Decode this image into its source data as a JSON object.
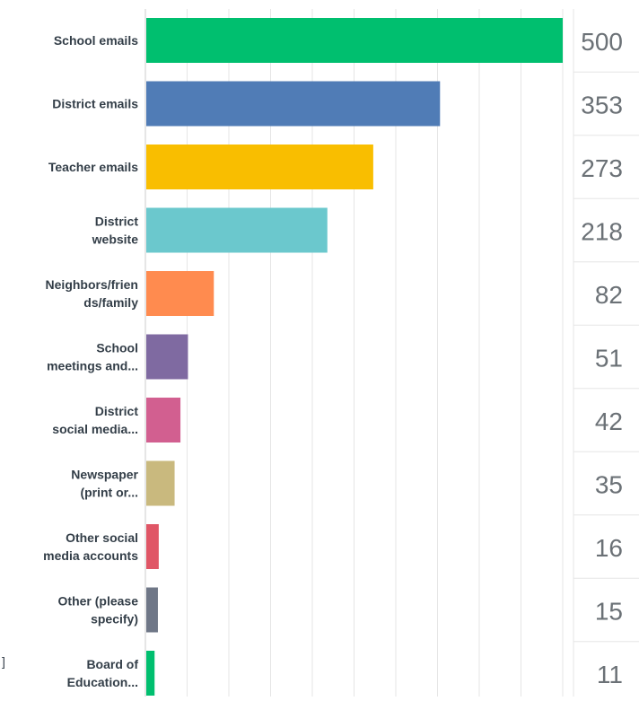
{
  "chart_data": {
    "type": "bar",
    "orientation": "horizontal",
    "categories": [
      "School emails",
      "District emails",
      "Teacher emails",
      "District website",
      "Neighbors/friends/family",
      "School meetings and...",
      "District social media...",
      "Newspaper (print or...",
      "Other social media accounts",
      "Other (please specify)",
      "Board of Education..."
    ],
    "category_label_lines": [
      [
        "School emails"
      ],
      [
        "District emails"
      ],
      [
        "Teacher emails"
      ],
      [
        "District",
        "website"
      ],
      [
        "Neighbors/frien",
        "ds/family"
      ],
      [
        "School",
        "meetings and..."
      ],
      [
        "District",
        "social media..."
      ],
      [
        "Newspaper",
        "(print or..."
      ],
      [
        "Other social",
        "media accounts"
      ],
      [
        "Other (please",
        "specify)"
      ],
      [
        "Board of",
        "Education..."
      ]
    ],
    "values": [
      500,
      353,
      273,
      218,
      82,
      51,
      42,
      35,
      16,
      15,
      11
    ],
    "value_labels": [
      "500",
      "353",
      "273",
      "218",
      "82",
      "51",
      "42",
      "35",
      "16",
      "15",
      "11"
    ],
    "bar_colors": [
      "#00bf6f",
      "#507cb6",
      "#f9be00",
      "#6bc8cd",
      "#ff8b4f",
      "#7f6aa1",
      "#d25f90",
      "#c9b97e",
      "#e05666",
      "#6f7787",
      "#00bf6f"
    ],
    "xlim": [
      0,
      560
    ],
    "grid": true,
    "gridline_color": "#e6e6e6",
    "axis_color": "#cccccc",
    "label_color": "#333e48",
    "value_label_color": "#6b7176",
    "title": "",
    "xlabel": "",
    "ylabel": "",
    "stray_mark": "]"
  }
}
